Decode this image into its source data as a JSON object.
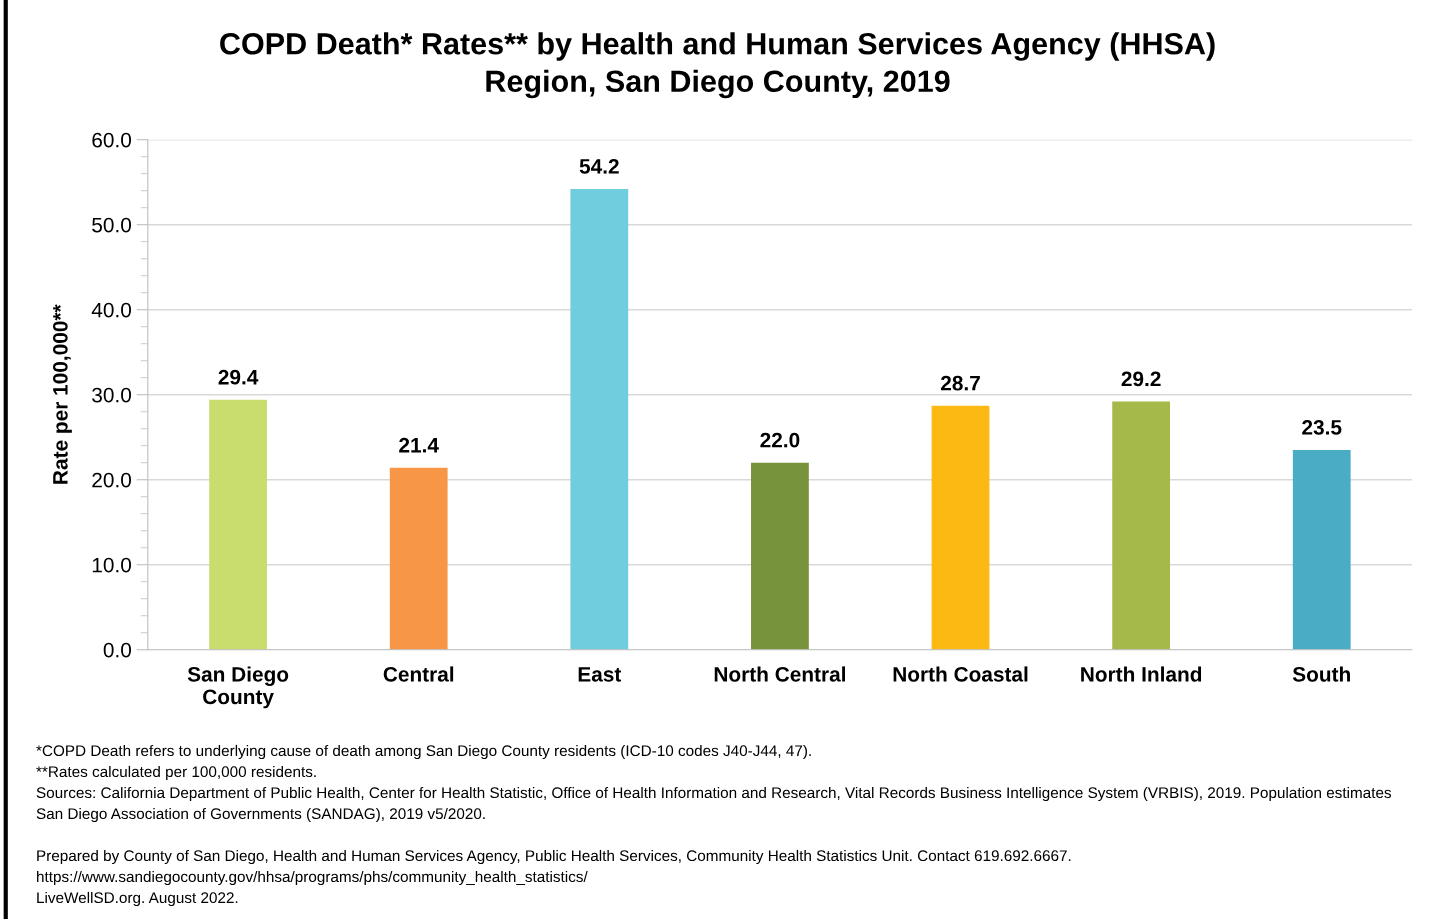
{
  "chart_data": {
    "type": "bar",
    "title": "COPD Death* Rates** by Health and Human Services Agency (HHSA)\nRegion, San Diego County, 2019",
    "ylabel": "Rate per 100,000**",
    "categories": [
      "San Diego\nCounty",
      "Central",
      "East",
      "North Central",
      "North Coastal",
      "North Inland",
      "South"
    ],
    "values": [
      29.4,
      21.4,
      54.2,
      22.0,
      28.7,
      29.2,
      23.5
    ],
    "colors": [
      "#c9dc6e",
      "#f79646",
      "#70cddd",
      "#77933c",
      "#fdb913",
      "#a5b94b",
      "#4bacc6"
    ],
    "value_labels": [
      "29.4",
      "21.4",
      "54.2",
      "22.0",
      "28.7",
      "29.2",
      "23.5"
    ],
    "ylim": [
      0,
      60
    ],
    "yticks": [
      {
        "value": 0,
        "label": "0.0"
      },
      {
        "value": 10,
        "label": "10.0"
      },
      {
        "value": 20,
        "label": "20.0"
      },
      {
        "value": 30,
        "label": "30.0"
      },
      {
        "value": 40,
        "label": "40.0"
      },
      {
        "value": 50,
        "label": "50.0"
      },
      {
        "value": 60,
        "label": "60.0"
      }
    ],
    "grid": "y",
    "annotations": [
      "*COPD Death refers to underlying cause of death among San Diego County residents (ICD-10 codes J40-J44, 47).",
      "**Rates calculated per 100,000 residents.",
      "Sources: California Department of Public Health, Center for Health Statistic, Office of Health Information and Research, Vital Records Business Intelligence System (VRBIS), 2019. Population estimates",
      "San Diego Association of Governments (SANDAG), 2019 v5/2020.",
      "Prepared by County of San Diego, Health and Human Services Agency, Public Health Services, Community Health Statistics Unit. Contact 619.692.6667.",
      "https://www.sandiegocounty.gov/hhsa/programs/phs/community_health_statistics/",
      "LiveWellSD.org. August 2022."
    ]
  }
}
